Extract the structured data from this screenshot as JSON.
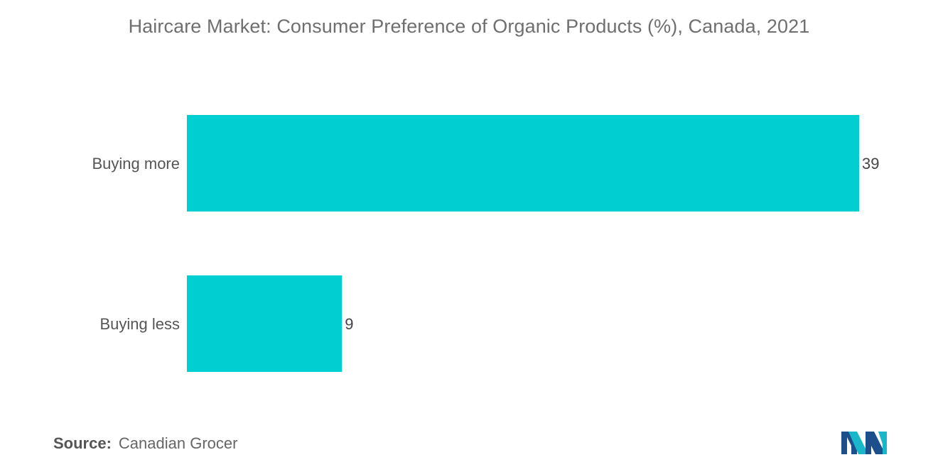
{
  "chart_data": {
    "type": "bar",
    "orientation": "horizontal",
    "title": "Haircare Market: Consumer Preference of Organic Products (%), Canada, 2021",
    "categories": [
      "Buying more",
      "Buying less"
    ],
    "values": [
      39,
      9
    ],
    "xlim": [
      0,
      39
    ],
    "grid": false,
    "legend": "none",
    "bar_color": "#00CED1"
  },
  "source": {
    "label": "Source:",
    "text": "Canadian Grocer"
  },
  "logo": {
    "icon": "mordor-intelligence-logo-icon",
    "colors": [
      "#1d4f8c",
      "#19b7c9"
    ]
  }
}
